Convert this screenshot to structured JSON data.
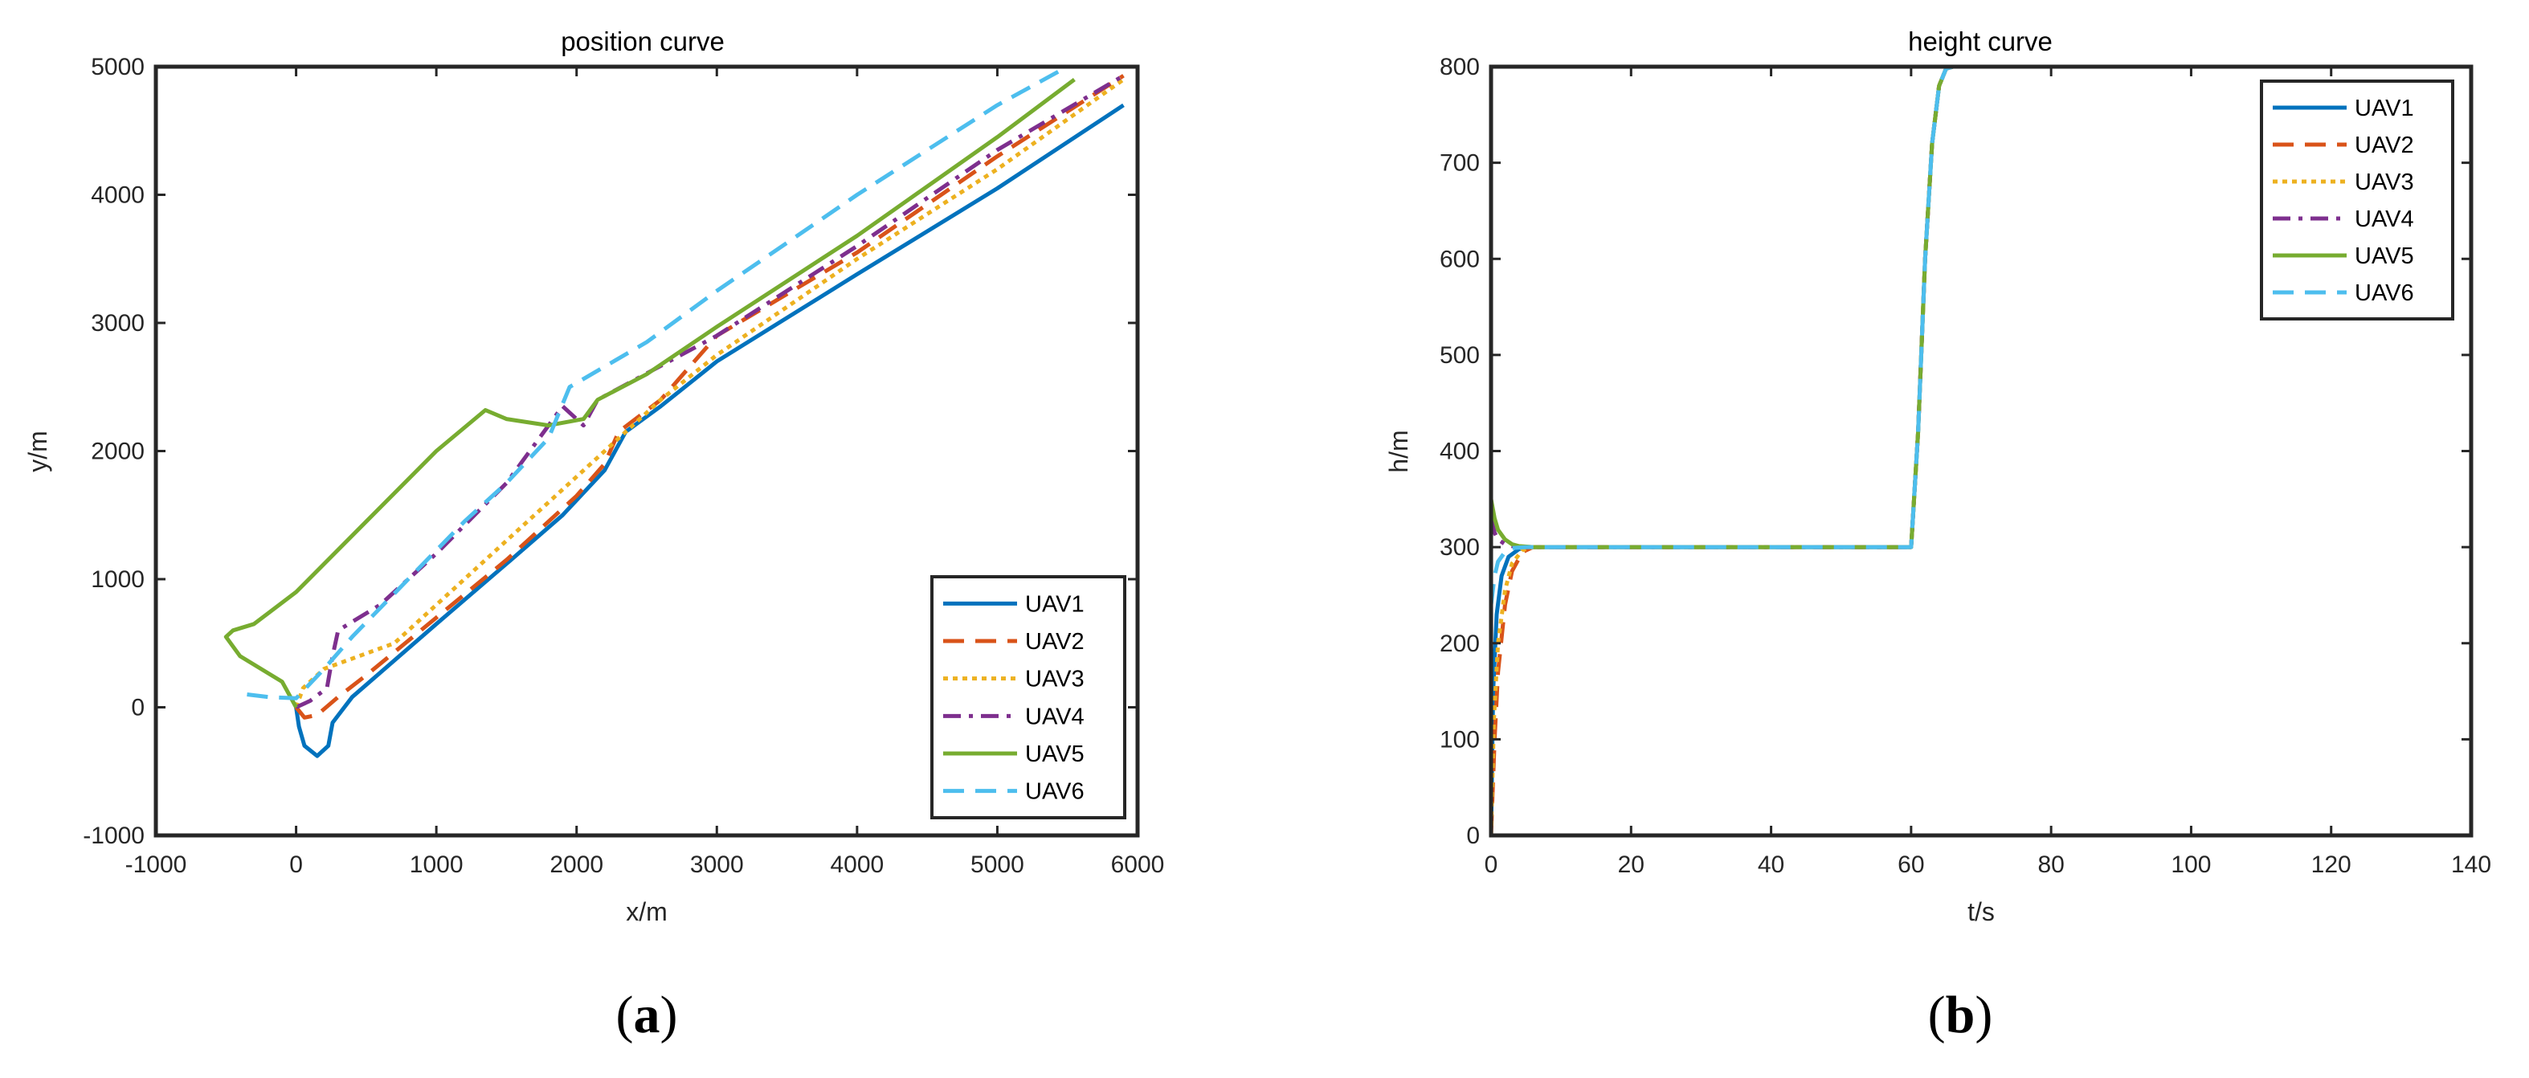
{
  "chart_data": [
    {
      "id": "a",
      "type": "line",
      "title": "position curve",
      "xlabel": "x/m",
      "ylabel": "y/m",
      "xlim": [
        -1000,
        6000
      ],
      "ylim": [
        -1000,
        5000
      ],
      "xticks": [
        -1000,
        0,
        1000,
        2000,
        3000,
        4000,
        5000,
        6000
      ],
      "yticks": [
        -1000,
        0,
        1000,
        2000,
        3000,
        4000,
        5000
      ],
      "panel_label_open": "(",
      "panel_label_letter": "a",
      "panel_label_close": ")",
      "grid": false,
      "legend": "bottom-right",
      "series": [
        {
          "name": "UAV1",
          "color": "#0072BD",
          "dash": "solid",
          "points": [
            [
              0,
              0
            ],
            [
              20,
              -150
            ],
            [
              60,
              -300
            ],
            [
              150,
              -380
            ],
            [
              230,
              -300
            ],
            [
              260,
              -120
            ],
            [
              400,
              80
            ],
            [
              1000,
              650
            ],
            [
              1500,
              1120
            ],
            [
              1900,
              1500
            ],
            [
              2200,
              1850
            ],
            [
              2350,
              2150
            ],
            [
              2600,
              2350
            ],
            [
              3000,
              2700
            ],
            [
              4000,
              3380
            ],
            [
              5000,
              4050
            ],
            [
              5900,
              4700
            ]
          ]
        },
        {
          "name": "UAV2",
          "color": "#D95319",
          "dash": "long",
          "points": [
            [
              0,
              0
            ],
            [
              60,
              -80
            ],
            [
              150,
              -60
            ],
            [
              300,
              80
            ],
            [
              500,
              250
            ],
            [
              1000,
              700
            ],
            [
              1500,
              1150
            ],
            [
              2000,
              1650
            ],
            [
              2200,
              1900
            ],
            [
              2300,
              2150
            ],
            [
              2600,
              2400
            ],
            [
              3000,
              2900
            ],
            [
              4000,
              3550
            ],
            [
              5000,
              4300
            ],
            [
              5900,
              4930
            ]
          ]
        },
        {
          "name": "UAV3",
          "color": "#EDB120",
          "dash": "dot",
          "points": [
            [
              0,
              0
            ],
            [
              50,
              150
            ],
            [
              200,
              300
            ],
            [
              450,
              400
            ],
            [
              700,
              500
            ],
            [
              900,
              700
            ],
            [
              1200,
              1000
            ],
            [
              1500,
              1300
            ],
            [
              1800,
              1600
            ],
            [
              2100,
              1900
            ],
            [
              2350,
              2150
            ],
            [
              2600,
              2400
            ],
            [
              3000,
              2750
            ],
            [
              4000,
              3500
            ],
            [
              5000,
              4200
            ],
            [
              5900,
              4900
            ]
          ]
        },
        {
          "name": "UAV4",
          "color": "#7E2F8E",
          "dash": "dashdot",
          "points": [
            [
              0,
              0
            ],
            [
              100,
              50
            ],
            [
              220,
              150
            ],
            [
              260,
              400
            ],
            [
              300,
              600
            ],
            [
              600,
              800
            ],
            [
              1000,
              1200
            ],
            [
              1500,
              1750
            ],
            [
              1900,
              2350
            ],
            [
              2050,
              2200
            ],
            [
              2150,
              2400
            ],
            [
              3000,
              2900
            ],
            [
              4000,
              3600
            ],
            [
              5000,
              4350
            ],
            [
              5900,
              4930
            ]
          ]
        },
        {
          "name": "UAV5",
          "color": "#77AC30",
          "dash": "solid",
          "points": [
            [
              0,
              0
            ],
            [
              -100,
              200
            ],
            [
              -400,
              400
            ],
            [
              -500,
              550
            ],
            [
              -450,
              600
            ],
            [
              -300,
              650
            ],
            [
              0,
              900
            ],
            [
              500,
              1450
            ],
            [
              1000,
              2000
            ],
            [
              1350,
              2320
            ],
            [
              1500,
              2250
            ],
            [
              1800,
              2200
            ],
            [
              2050,
              2250
            ],
            [
              2150,
              2400
            ],
            [
              2500,
              2600
            ],
            [
              3000,
              2970
            ],
            [
              4000,
              3680
            ],
            [
              5000,
              4450
            ],
            [
              5550,
              4900
            ]
          ]
        },
        {
          "name": "UAV6",
          "color": "#4DBEEE",
          "dash": "long",
          "points": [
            [
              -350,
              100
            ],
            [
              -200,
              80
            ],
            [
              0,
              70
            ],
            [
              200,
              300
            ],
            [
              400,
              550
            ],
            [
              800,
              1000
            ],
            [
              1200,
              1450
            ],
            [
              1500,
              1750
            ],
            [
              1800,
              2100
            ],
            [
              1950,
              2500
            ],
            [
              2500,
              2850
            ],
            [
              3000,
              3250
            ],
            [
              4000,
              4000
            ],
            [
              5000,
              4700
            ],
            [
              5500,
              5000
            ]
          ]
        }
      ]
    },
    {
      "id": "b",
      "type": "line",
      "title": "height curve",
      "xlabel": "t/s",
      "ylabel": "h/m",
      "xlim": [
        0,
        140
      ],
      "ylim": [
        0,
        800
      ],
      "xticks": [
        0,
        20,
        40,
        60,
        80,
        100,
        120,
        140
      ],
      "yticks": [
        0,
        100,
        200,
        300,
        400,
        500,
        600,
        700,
        800
      ],
      "panel_label_open": "(",
      "panel_label_letter": "b",
      "panel_label_close": ")",
      "grid": false,
      "legend": "top-right",
      "series": [
        {
          "name": "UAV1",
          "color": "#0072BD",
          "dash": "solid",
          "points": [
            [
              0,
              0
            ],
            [
              0.3,
              150
            ],
            [
              0.8,
              230
            ],
            [
              1.5,
              270
            ],
            [
              2.5,
              290
            ],
            [
              4,
              298
            ],
            [
              6,
              300
            ],
            [
              60,
              300
            ],
            [
              61,
              420
            ],
            [
              62,
              600
            ],
            [
              63,
              720
            ],
            [
              64,
              780
            ],
            [
              65,
              798
            ],
            [
              66,
              800
            ],
            [
              140,
              800
            ]
          ]
        },
        {
          "name": "UAV2",
          "color": "#D95319",
          "dash": "long",
          "points": [
            [
              0,
              0
            ],
            [
              0.5,
              100
            ],
            [
              1,
              170
            ],
            [
              2,
              240
            ],
            [
              3,
              275
            ],
            [
              4.5,
              295
            ],
            [
              6,
              300
            ],
            [
              60,
              300
            ],
            [
              61,
              420
            ],
            [
              62,
              600
            ],
            [
              63,
              720
            ],
            [
              64,
              780
            ],
            [
              65,
              798
            ],
            [
              66,
              800
            ],
            [
              140,
              800
            ]
          ]
        },
        {
          "name": "UAV3",
          "color": "#EDB120",
          "dash": "dot",
          "points": [
            [
              0,
              0
            ],
            [
              0.4,
              120
            ],
            [
              1,
              200
            ],
            [
              2,
              255
            ],
            [
              3,
              283
            ],
            [
              4.5,
              297
            ],
            [
              6,
              300
            ],
            [
              60,
              300
            ],
            [
              61,
              420
            ],
            [
              62,
              600
            ],
            [
              63,
              720
            ],
            [
              64,
              780
            ],
            [
              65,
              798
            ],
            [
              66,
              800
            ],
            [
              140,
              800
            ]
          ]
        },
        {
          "name": "UAV4",
          "color": "#7E2F8E",
          "dash": "dashdot",
          "points": [
            [
              0,
              330
            ],
            [
              0.5,
              315
            ],
            [
              1,
              308
            ],
            [
              2,
              303
            ],
            [
              3,
              301
            ],
            [
              5,
              300
            ],
            [
              60,
              300
            ],
            [
              61,
              420
            ],
            [
              62,
              600
            ],
            [
              63,
              720
            ],
            [
              64,
              780
            ],
            [
              65,
              798
            ],
            [
              66,
              800
            ],
            [
              140,
              800
            ]
          ]
        },
        {
          "name": "UAV5",
          "color": "#77AC30",
          "dash": "solid",
          "points": [
            [
              0,
              350
            ],
            [
              0.5,
              330
            ],
            [
              1,
              318
            ],
            [
              2,
              308
            ],
            [
              3,
              303
            ],
            [
              4,
              301
            ],
            [
              6,
              300
            ],
            [
              60,
              300
            ],
            [
              61,
              420
            ],
            [
              62,
              600
            ],
            [
              63,
              720
            ],
            [
              64,
              780
            ],
            [
              65,
              798
            ],
            [
              66,
              800
            ],
            [
              140,
              800
            ]
          ]
        },
        {
          "name": "UAV6",
          "color": "#4DBEEE",
          "dash": "long",
          "points": [
            [
              0,
              240
            ],
            [
              0.5,
              270
            ],
            [
              1,
              285
            ],
            [
              2,
              295
            ],
            [
              3,
              299
            ],
            [
              5,
              300
            ],
            [
              60,
              300
            ],
            [
              61,
              420
            ],
            [
              62,
              600
            ],
            [
              63,
              720
            ],
            [
              64,
              780
            ],
            [
              65,
              798
            ],
            [
              66,
              800
            ],
            [
              140,
              800
            ]
          ]
        }
      ]
    }
  ]
}
